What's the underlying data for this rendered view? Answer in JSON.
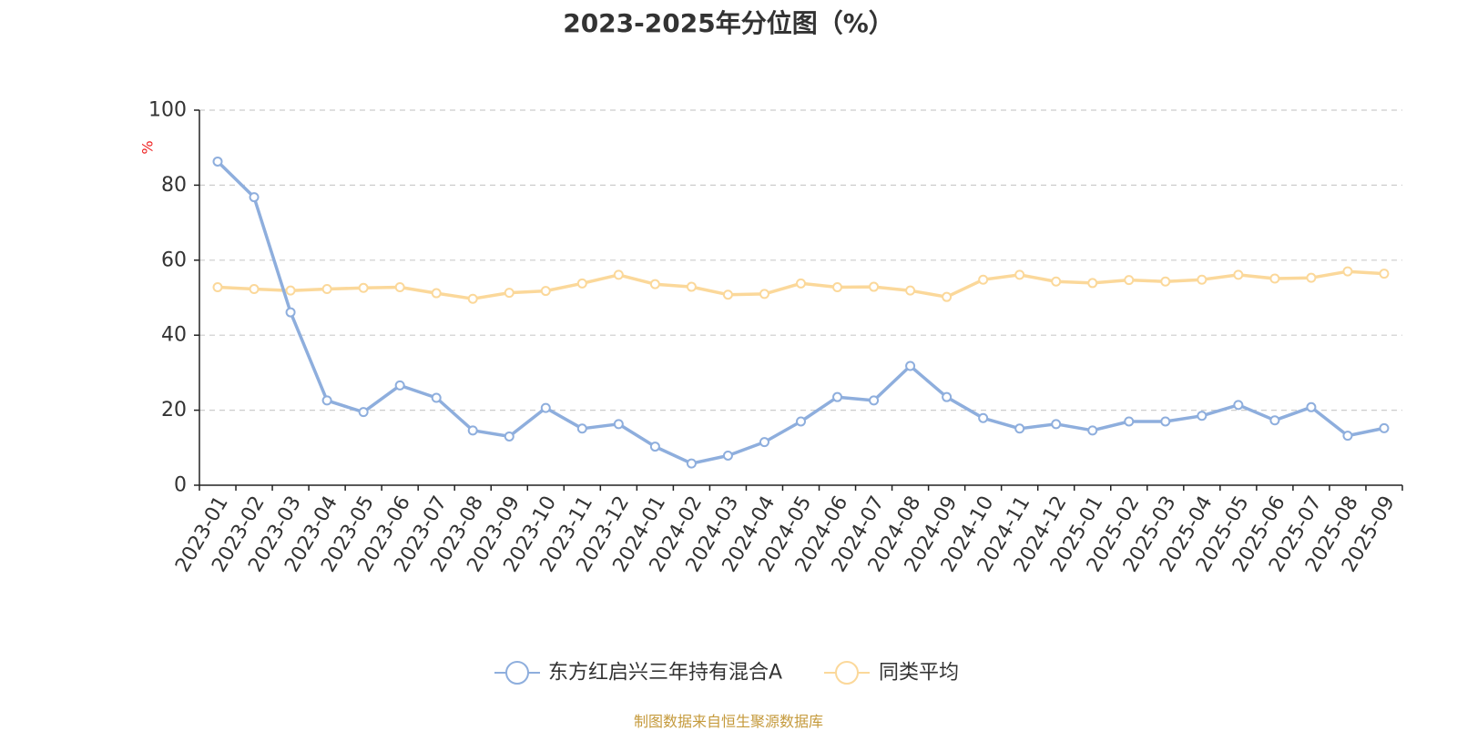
{
  "chart_data": {
    "type": "line",
    "title": "2023-2025年分位图（%）",
    "ylabel": "%",
    "xlabel": "",
    "ylim": [
      0,
      100
    ],
    "yticks": [
      0,
      20,
      40,
      60,
      80,
      100
    ],
    "grid": true,
    "legend_position": "bottom",
    "categories": [
      "2023-01",
      "2023-02",
      "2023-03",
      "2023-04",
      "2023-05",
      "2023-06",
      "2023-07",
      "2023-08",
      "2023-09",
      "2023-10",
      "2023-11",
      "2023-12",
      "2024-01",
      "2024-02",
      "2024-03",
      "2024-04",
      "2024-05",
      "2024-06",
      "2024-07",
      "2024-08",
      "2024-09",
      "2024-10",
      "2024-11",
      "2024-12",
      "2025-01",
      "2025-02",
      "2025-03",
      "2025-04",
      "2025-05",
      "2025-06",
      "2025-07",
      "2025-08",
      "2025-09"
    ],
    "series": [
      {
        "name": "东方红启兴三年持有混合A",
        "color": "#8eaedd",
        "values": [
          86.3,
          76.8,
          46.1,
          22.6,
          19.5,
          26.6,
          23.3,
          14.6,
          13.0,
          20.6,
          15.1,
          16.3,
          10.3,
          5.8,
          7.9,
          11.5,
          17.0,
          23.5,
          22.6,
          31.8,
          23.5,
          17.9,
          15.1,
          16.3,
          14.6,
          17.0,
          17.0,
          18.5,
          21.4,
          17.3,
          20.8,
          13.2,
          15.2
        ]
      },
      {
        "name": "同类平均",
        "color": "#fbd89a",
        "values": [
          52.8,
          52.3,
          51.9,
          52.3,
          52.6,
          52.8,
          51.2,
          49.7,
          51.3,
          51.8,
          53.8,
          56.1,
          53.6,
          52.9,
          50.8,
          51.0,
          53.8,
          52.8,
          52.9,
          51.9,
          50.2,
          54.8,
          56.1,
          54.3,
          53.9,
          54.7,
          54.3,
          54.8,
          56.1,
          55.1,
          55.3,
          57.0,
          56.4
        ]
      }
    ]
  },
  "source_text": "制图数据来自恒生聚源数据库",
  "colors": {
    "axis": "#222222",
    "grid": "#cccccc",
    "tick_label": "#333333",
    "ylabel": "#ee2222",
    "source": "#c59a3c"
  }
}
